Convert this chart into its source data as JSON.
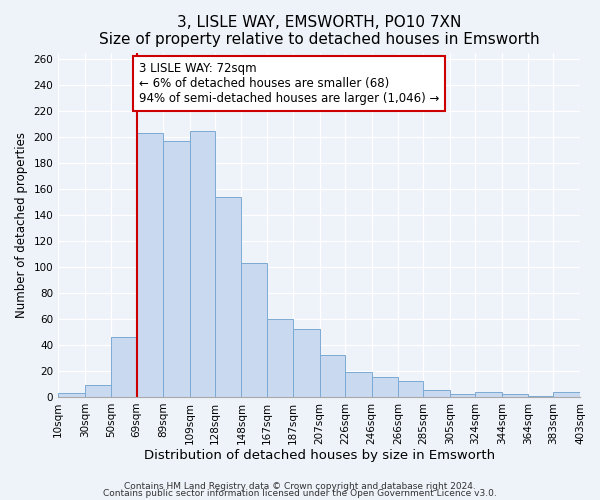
{
  "title": "3, LISLE WAY, EMSWORTH, PO10 7XN",
  "subtitle": "Size of property relative to detached houses in Emsworth",
  "xlabel": "Distribution of detached houses by size in Emsworth",
  "ylabel": "Number of detached properties",
  "bin_edges": [
    10,
    30,
    50,
    69,
    89,
    109,
    128,
    148,
    167,
    187,
    207,
    226,
    246,
    266,
    285,
    305,
    324,
    344,
    364,
    383,
    403
  ],
  "bar_labels": [
    "10sqm",
    "30sqm",
    "50sqm",
    "69sqm",
    "89sqm",
    "109sqm",
    "128sqm",
    "148sqm",
    "167sqm",
    "187sqm",
    "207sqm",
    "226sqm",
    "246sqm",
    "266sqm",
    "285sqm",
    "305sqm",
    "324sqm",
    "344sqm",
    "364sqm",
    "383sqm",
    "403sqm"
  ],
  "bar_values": [
    3,
    9,
    46,
    203,
    197,
    205,
    154,
    103,
    60,
    52,
    32,
    19,
    15,
    12,
    5,
    2,
    4,
    2,
    1,
    4
  ],
  "bar_color": "#c9d9f0",
  "bar_edgecolor": "#7baad4",
  "vline_pos": 69,
  "vline_color": "#cc0000",
  "annotation_text": "3 LISLE WAY: 72sqm\n← 6% of detached houses are smaller (68)\n94% of semi-detached houses are larger (1,046) →",
  "annotation_box_edgecolor": "#cc0000",
  "annotation_box_facecolor": "#ffffff",
  "ylim": [
    0,
    265
  ],
  "yticks": [
    0,
    20,
    40,
    60,
    80,
    100,
    120,
    140,
    160,
    180,
    200,
    220,
    240,
    260
  ],
  "footer1": "Contains HM Land Registry data © Crown copyright and database right 2024.",
  "footer2": "Contains public sector information licensed under the Open Government Licence v3.0.",
  "bg_color": "#eef2f9",
  "title_fontsize": 11,
  "xlabel_fontsize": 9.5,
  "ylabel_fontsize": 8.5,
  "tick_fontsize": 7.5,
  "annotation_fontsize": 8.5,
  "footer_fontsize": 6.5
}
